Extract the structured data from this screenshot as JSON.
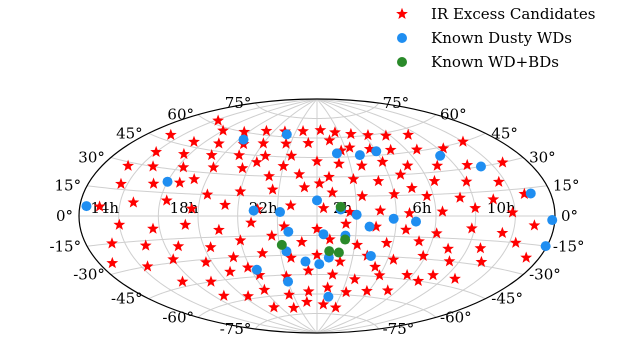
{
  "chart_data": {
    "type": "scatter",
    "projection": "aitoff",
    "grid": true,
    "legend_position": "top-right",
    "lat_ticks": [
      {
        "value": 75,
        "left": "75°",
        "right": "75°"
      },
      {
        "value": 60,
        "left": "60°",
        "right": "60°"
      },
      {
        "value": 45,
        "left": "45°",
        "right": "45°"
      },
      {
        "value": 30,
        "left": "30°",
        "right": "30°"
      },
      {
        "value": 15,
        "left": "15°",
        "right": "15°"
      },
      {
        "value": 0,
        "left": "0°",
        "right": "0°"
      },
      {
        "value": -15,
        "left": "-15°",
        "right": "-15°"
      },
      {
        "value": -30,
        "left": "-30°",
        "right": "-30°"
      },
      {
        "value": -45,
        "left": "-45°",
        "right": "-45°"
      },
      {
        "value": -60,
        "left": "-60°",
        "right": "-60°"
      },
      {
        "value": -75,
        "left": "-75°",
        "right": "-75°"
      }
    ],
    "ra_ticks": [
      {
        "lon": -150,
        "label": "14h"
      },
      {
        "lon": -90,
        "label": "18h"
      },
      {
        "lon": -30,
        "label": "22h"
      },
      {
        "lon": 30,
        "label": "2h"
      },
      {
        "lon": 90,
        "label": "6h"
      },
      {
        "lon": 150,
        "label": "10h"
      }
    ],
    "series": [
      {
        "name": "IR Excess Candidates",
        "color": "#ff0000",
        "marker": "star",
        "points": [
          [
            -147,
            62
          ],
          [
            -120,
            58
          ],
          [
            -95,
            60
          ],
          [
            -70,
            63
          ],
          [
            -45,
            64
          ],
          [
            -20,
            65
          ],
          [
            5,
            66
          ],
          [
            25,
            64
          ],
          [
            45,
            62
          ],
          [
            65,
            60
          ],
          [
            85,
            58
          ],
          [
            110,
            56
          ],
          [
            -130,
            48
          ],
          [
            -105,
            50
          ],
          [
            -80,
            52
          ],
          [
            -60,
            54
          ],
          [
            -35,
            55
          ],
          [
            -10,
            56
          ],
          [
            15,
            58
          ],
          [
            35,
            52
          ],
          [
            55,
            50
          ],
          [
            75,
            48
          ],
          [
            100,
            46
          ],
          [
            125,
            44
          ],
          [
            -150,
            38
          ],
          [
            -125,
            40
          ],
          [
            -100,
            42
          ],
          [
            -75,
            44
          ],
          [
            -50,
            45
          ],
          [
            -25,
            46
          ],
          [
            0,
            42
          ],
          [
            20,
            40
          ],
          [
            40,
            38
          ],
          [
            60,
            40
          ],
          [
            80,
            36
          ],
          [
            105,
            34
          ],
          [
            130,
            32
          ],
          [
            -160,
            28
          ],
          [
            -140,
            30
          ],
          [
            -115,
            32
          ],
          [
            -90,
            34
          ],
          [
            -65,
            35
          ],
          [
            -40,
            30
          ],
          [
            -15,
            32
          ],
          [
            10,
            30
          ],
          [
            30,
            28
          ],
          [
            50,
            26
          ],
          [
            70,
            30
          ],
          [
            95,
            24
          ],
          [
            120,
            22
          ],
          [
            145,
            20
          ],
          [
            -155,
            18
          ],
          [
            -130,
            20
          ],
          [
            -110,
            22
          ],
          [
            -85,
            15
          ],
          [
            -60,
            18
          ],
          [
            -35,
            20
          ],
          [
            -10,
            22
          ],
          [
            12,
            18
          ],
          [
            35,
            15
          ],
          [
            60,
            16
          ],
          [
            85,
            14
          ],
          [
            110,
            12
          ],
          [
            135,
            10
          ],
          [
            160,
            12
          ],
          [
            -165,
            5
          ],
          [
            -140,
            8
          ],
          [
            -115,
            10
          ],
          [
            -95,
            5
          ],
          [
            -70,
            8
          ],
          [
            -45,
            5
          ],
          [
            -20,
            8
          ],
          [
            5,
            6
          ],
          [
            25,
            3
          ],
          [
            48,
            4
          ],
          [
            70,
            2
          ],
          [
            95,
            3
          ],
          [
            120,
            5
          ],
          [
            148,
            2
          ],
          [
            -150,
            -5
          ],
          [
            -125,
            -8
          ],
          [
            -100,
            -6
          ],
          [
            -75,
            -10
          ],
          [
            -50,
            -5
          ],
          [
            -25,
            -8
          ],
          [
            0,
            -10
          ],
          [
            22,
            -6
          ],
          [
            45,
            -8
          ],
          [
            68,
            -10
          ],
          [
            92,
            -12
          ],
          [
            118,
            -8
          ],
          [
            142,
            -10
          ],
          [
            165,
            -5
          ],
          [
            -160,
            -15
          ],
          [
            -135,
            -18
          ],
          [
            -110,
            -20
          ],
          [
            -85,
            -22
          ],
          [
            -60,
            -18
          ],
          [
            -35,
            -15
          ],
          [
            -12,
            -20
          ],
          [
            10,
            -18
          ],
          [
            32,
            -22
          ],
          [
            55,
            -20
          ],
          [
            80,
            -18
          ],
          [
            105,
            -22
          ],
          [
            130,
            -20
          ],
          [
            155,
            -15
          ],
          [
            -145,
            -30
          ],
          [
            -120,
            -28
          ],
          [
            -95,
            -32
          ],
          [
            -70,
            -30
          ],
          [
            -45,
            -28
          ],
          [
            -22,
            -32
          ],
          [
            0,
            -30
          ],
          [
            20,
            -35
          ],
          [
            42,
            -30
          ],
          [
            65,
            -32
          ],
          [
            88,
            -28
          ],
          [
            112,
            -30
          ],
          [
            138,
            -28
          ],
          [
            -130,
            -42
          ],
          [
            -105,
            -45
          ],
          [
            -80,
            -40
          ],
          [
            -55,
            -44
          ],
          [
            -30,
            -46
          ],
          [
            -8,
            -42
          ],
          [
            15,
            -45
          ],
          [
            38,
            -48
          ],
          [
            60,
            -44
          ],
          [
            85,
            -42
          ],
          [
            108,
            -40
          ],
          [
            -110,
            -55
          ],
          [
            -85,
            -58
          ],
          [
            -60,
            -55
          ],
          [
            -35,
            -60
          ],
          [
            -10,
            -58
          ],
          [
            12,
            -55
          ],
          [
            35,
            -58
          ],
          [
            58,
            -56
          ],
          [
            80,
            -54
          ],
          [
            -70,
            -68
          ],
          [
            -40,
            -70
          ],
          [
            -15,
            -66
          ],
          [
            10,
            -68
          ],
          [
            32,
            -70
          ],
          [
            -160,
            48
          ],
          [
            160,
            30
          ],
          [
            170,
            -22
          ],
          [
            -170,
            -25
          ],
          [
            150,
            45
          ],
          [
            -100,
            25
          ],
          [
            75,
            20
          ],
          [
            -55,
            40
          ],
          [
            25,
            50
          ],
          [
            2,
            25
          ],
          [
            -30,
            38
          ],
          [
            52,
            -38
          ],
          [
            -62,
            -38
          ],
          [
            100,
            -45
          ],
          [
            130,
            -40
          ]
        ]
      },
      {
        "name": "Known Dusty WDs",
        "color": "#1f8ef1",
        "marker": "circle",
        "points": [
          [
            -175,
            5
          ],
          [
            -120,
            22
          ],
          [
            -85,
            55
          ],
          [
            -40,
            62
          ],
          [
            20,
            48
          ],
          [
            42,
            46
          ],
          [
            60,
            48
          ],
          [
            115,
            40
          ],
          [
            140,
            30
          ],
          [
            165,
            12
          ],
          [
            178,
            -2
          ],
          [
            179,
            -15
          ],
          [
            -48,
            4
          ],
          [
            -28,
            3
          ],
          [
            0,
            12
          ],
          [
            18,
            5
          ],
          [
            30,
            1
          ],
          [
            58,
            -2
          ],
          [
            75,
            -4
          ],
          [
            -22,
            -12
          ],
          [
            5,
            -14
          ],
          [
            22,
            -15
          ],
          [
            -25,
            -27
          ],
          [
            -10,
            -35
          ],
          [
            2,
            -37
          ],
          [
            10,
            -32
          ],
          [
            45,
            -30
          ],
          [
            -55,
            -40
          ],
          [
            -30,
            -50
          ],
          [
            15,
            -62
          ],
          [
            40,
            -8
          ]
        ]
      },
      {
        "name": "Known WD+BDs",
        "color": "#2a8a2a",
        "marker": "circle",
        "points": [
          [
            18,
            7
          ],
          [
            -28,
            -22
          ],
          [
            22,
            -18
          ],
          [
            10,
            -27
          ],
          [
            18,
            -28
          ]
        ]
      }
    ]
  }
}
